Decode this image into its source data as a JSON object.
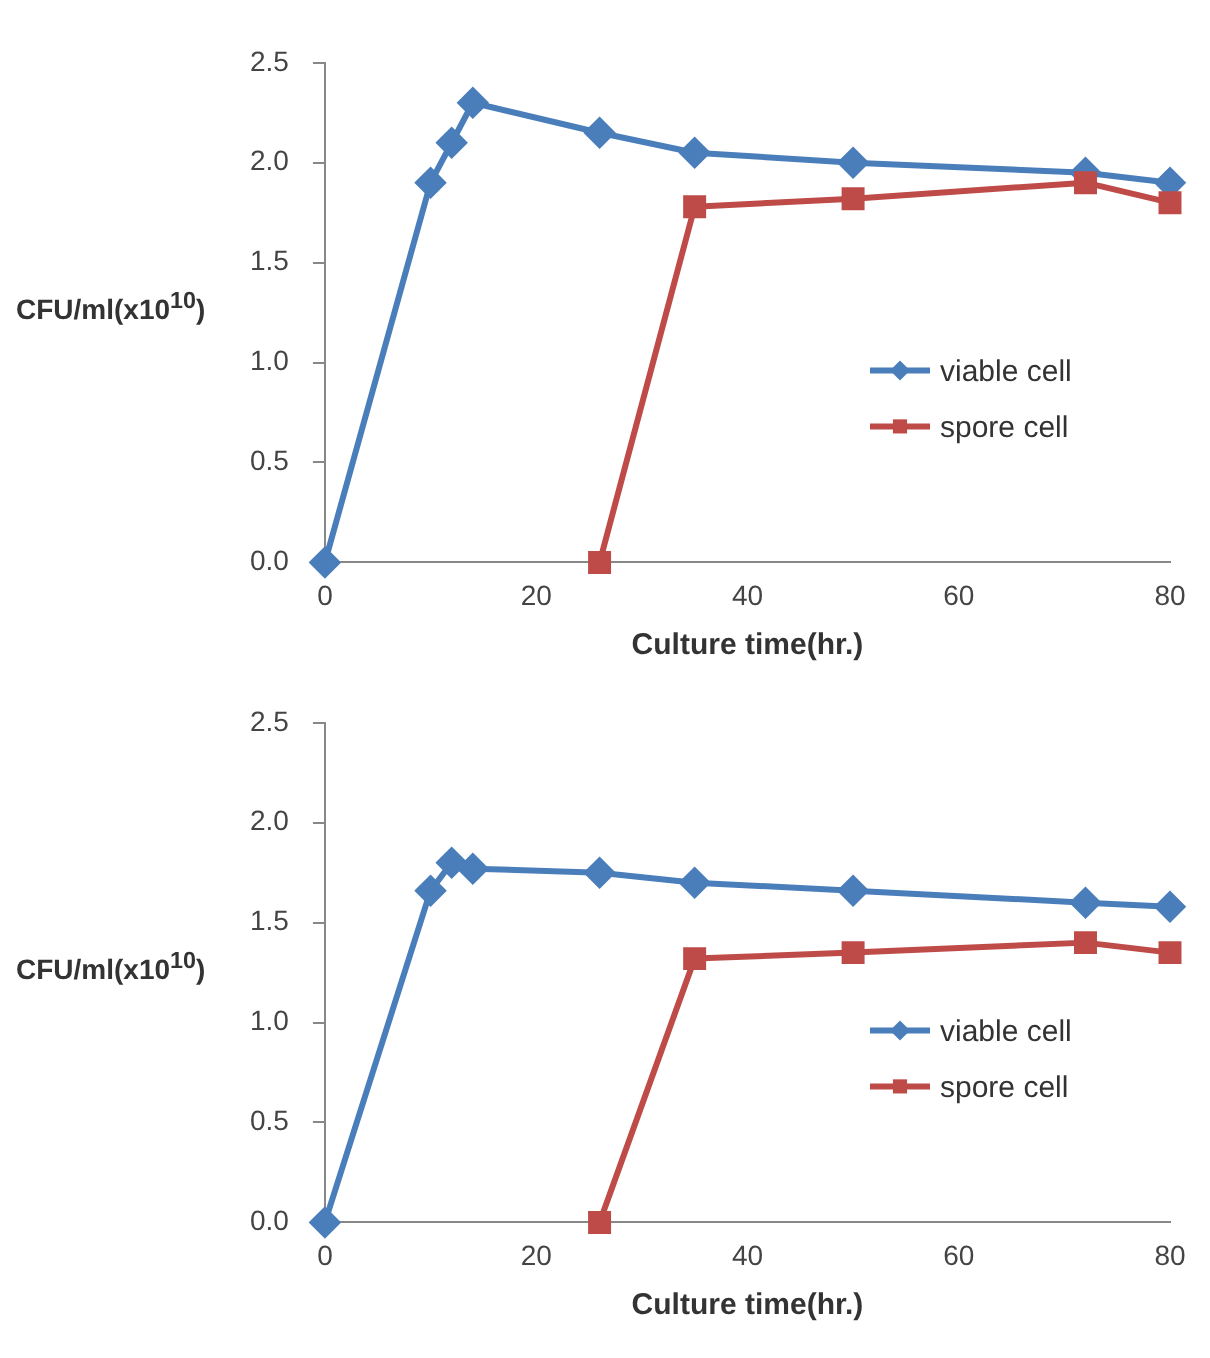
{
  "chart_data": [
    {
      "type": "line",
      "xlabel": "Culture time(hr.)",
      "ylabel": "CFU/ml(x10$^{10}$)",
      "xlim": [
        0,
        80
      ],
      "xticks": [
        0,
        20,
        40,
        60,
        80
      ],
      "ylim": [
        0,
        2.5
      ],
      "yticks": [
        {
          "value": 0,
          "label": "0.0"
        },
        0.5,
        {
          "value": 1,
          "label": "1.0"
        },
        1.5,
        {
          "value": 2,
          "label": "2.0"
        },
        2.5
      ],
      "grid": false,
      "legend": "bottom right",
      "series": [
        {
          "name": "viable cell",
          "color": "#4a7ebb",
          "marker": "diamond",
          "x": [
            0,
            10,
            12,
            14,
            26,
            35,
            50,
            72,
            80
          ],
          "values": [
            0,
            1.9,
            2.1,
            2.3,
            2.15,
            2.05,
            2.0,
            1.95,
            1.9
          ]
        },
        {
          "name": "spore cell",
          "color": "#be4b48",
          "marker": "square",
          "x": [
            26,
            35,
            50,
            72,
            80
          ],
          "values": [
            0,
            1.78,
            1.82,
            1.9,
            1.8
          ]
        }
      ]
    },
    {
      "type": "line",
      "xlabel": "Culture time(hr.)",
      "ylabel": "CFU/ml(x10$^{10}$)",
      "xlim": [
        0,
        80
      ],
      "xticks": [
        0,
        20,
        40,
        60,
        80
      ],
      "ylim": [
        0,
        2.5
      ],
      "yticks": [
        {
          "value": 0,
          "label": "0.0"
        },
        0.5,
        {
          "value": 1,
          "label": "1.0"
        },
        1.5,
        {
          "value": 2,
          "label": "2.0"
        },
        2.5
      ],
      "grid": false,
      "legend": "bottom right",
      "series": [
        {
          "name": "viable cell",
          "color": "#4a7ebb",
          "marker": "diamond",
          "x": [
            0,
            10,
            12,
            14,
            26,
            35,
            50,
            72,
            80
          ],
          "values": [
            0,
            1.66,
            1.8,
            1.77,
            1.75,
            1.7,
            1.66,
            1.6,
            1.58
          ]
        },
        {
          "name": "spore cell",
          "color": "#be4b48",
          "marker": "square",
          "x": [
            26,
            35,
            50,
            72,
            80
          ],
          "values": [
            0,
            1.32,
            1.35,
            1.4,
            1.35
          ]
        }
      ]
    }
  ]
}
